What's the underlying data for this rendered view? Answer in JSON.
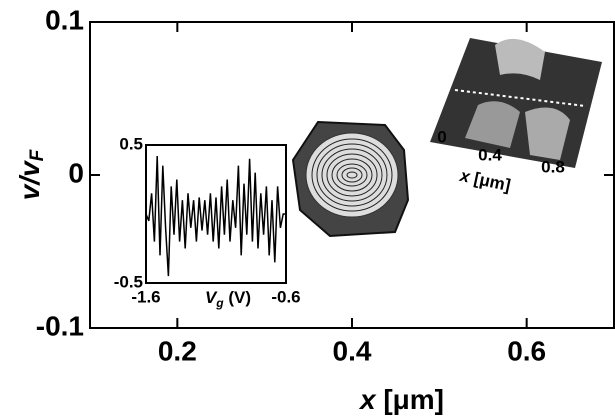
{
  "chart_data": [
    {
      "type": "contour",
      "x_label": [
        "x",
        " [μm]"
      ],
      "y_label": [
        "v/v",
        "F"
      ],
      "xlim": [
        0.1,
        0.7
      ],
      "ylim": [
        -0.1,
        0.1
      ],
      "xticks": [
        0.2,
        0.4,
        0.6
      ],
      "yticks": [
        -0.1,
        0,
        0.1
      ]
    },
    {
      "type": "line",
      "x_label": [
        "V",
        "g",
        " (V)"
      ],
      "x": [
        -1.6,
        -1.58,
        -1.56,
        -1.54,
        -1.52,
        -1.5,
        -1.48,
        -1.46,
        -1.44,
        -1.42,
        -1.4,
        -1.38,
        -1.36,
        -1.34,
        -1.32,
        -1.3,
        -1.28,
        -1.26,
        -1.24,
        -1.22,
        -1.2,
        -1.18,
        -1.16,
        -1.14,
        -1.12,
        -1.1,
        -1.08,
        -1.06,
        -1.04,
        -1.02,
        -1.0,
        -0.98,
        -0.96,
        -0.94,
        -0.92,
        -0.9,
        -0.88,
        -0.86,
        -0.84,
        -0.82,
        -0.8,
        -0.78,
        -0.76,
        -0.74,
        -0.72,
        -0.7,
        -0.68,
        -0.66,
        -0.64,
        -0.62,
        -0.6
      ],
      "values": [
        0.0,
        -0.05,
        0.15,
        -0.2,
        0.42,
        -0.3,
        0.35,
        -0.1,
        -0.45,
        0.2,
        -0.15,
        0.25,
        -0.2,
        0.1,
        -0.25,
        0.15,
        -0.1,
        0.1,
        -0.2,
        0.12,
        -0.12,
        0.1,
        -0.15,
        0.15,
        -0.2,
        0.12,
        -0.25,
        0.2,
        -0.15,
        0.25,
        -0.2,
        0.1,
        -0.1,
        0.35,
        -0.3,
        0.22,
        -0.15,
        0.4,
        -0.2,
        0.3,
        -0.25,
        0.15,
        -0.15,
        0.2,
        -0.3,
        0.1,
        -0.35,
        0.2,
        -0.1,
        0.0,
        0.0
      ],
      "color": "#000000",
      "xlim": [
        -1.6,
        -0.6
      ],
      "ylim": [
        -0.5,
        0.5
      ],
      "xticks": [
        -1.6,
        -0.6
      ],
      "yticks": [
        -0.5,
        0.5
      ]
    },
    {
      "type": "image",
      "x_label": [
        "x",
        " [μm]"
      ],
      "xticks": [
        0,
        0.4,
        0.8
      ]
    }
  ]
}
